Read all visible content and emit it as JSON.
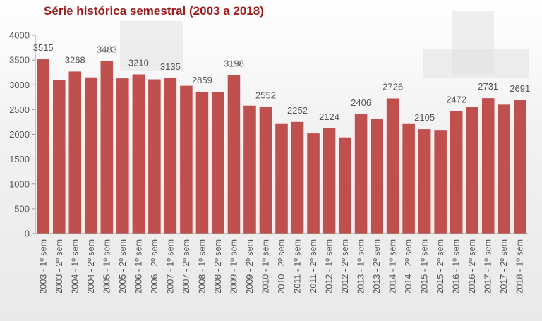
{
  "chart_data": {
    "type": "bar",
    "title": "Série histórica semestral  (2003 a 2018)",
    "bar_color": "#c0504d",
    "ylim": [
      0,
      4000
    ],
    "yticks": [
      0,
      500,
      1000,
      1500,
      2000,
      2500,
      3000,
      3500,
      4000
    ],
    "categories": [
      "2003 - 1º sem",
      "2003 - 2º sem",
      "2004 - 1º sem",
      "2004 - 2º sem",
      "2005 - 1º sem",
      "2005 - 2º sem",
      "2006 - 1º sem",
      "2006 - 2º sem",
      "2007 - 1º sem",
      "2007 - 2º sem",
      "2008 - 1º sem",
      "2008 - 2º sem",
      "2009 - 1º sem",
      "2009 - 2º sem",
      "2010 - 1º sem",
      "2010 - 2º sem",
      "2011 - 1º sem",
      "2011 - 2º sem",
      "2012 - 1º sem",
      "2012 - 2º sem",
      "2013 - 1º sem",
      "2013 - 2º sem",
      "2014 - 1º sem",
      "2014 - 2º sem",
      "2015 - 1º sem",
      "2015 - 2º sem",
      "2016 - 1º sem",
      "2016 - 2º sem",
      "2017 - 1º sem",
      "2017 - 2º sem",
      "2018 - 1º sem"
    ],
    "values": [
      3515,
      3090,
      3268,
      3150,
      3483,
      3130,
      3210,
      3110,
      3135,
      2980,
      2859,
      2860,
      3198,
      2580,
      2552,
      2210,
      2252,
      2020,
      2124,
      1940,
      2406,
      2320,
      2726,
      2210,
      2105,
      2090,
      2472,
      2560,
      2731,
      2600,
      2691
    ],
    "data_labels": [
      {
        "index": 0,
        "text": "3515"
      },
      {
        "index": 2,
        "text": "3268"
      },
      {
        "index": 4,
        "text": "3483"
      },
      {
        "index": 6,
        "text": "3210"
      },
      {
        "index": 8,
        "text": "3135"
      },
      {
        "index": 10,
        "text": "2859"
      },
      {
        "index": 12,
        "text": "3198"
      },
      {
        "index": 14,
        "text": "2552"
      },
      {
        "index": 16,
        "text": "2252"
      },
      {
        "index": 18,
        "text": "2124"
      },
      {
        "index": 20,
        "text": "2406"
      },
      {
        "index": 22,
        "text": "2726"
      },
      {
        "index": 24,
        "text": "2105"
      },
      {
        "index": 26,
        "text": "2472"
      },
      {
        "index": 28,
        "text": "2731"
      },
      {
        "index": 30,
        "text": "2691"
      }
    ]
  }
}
